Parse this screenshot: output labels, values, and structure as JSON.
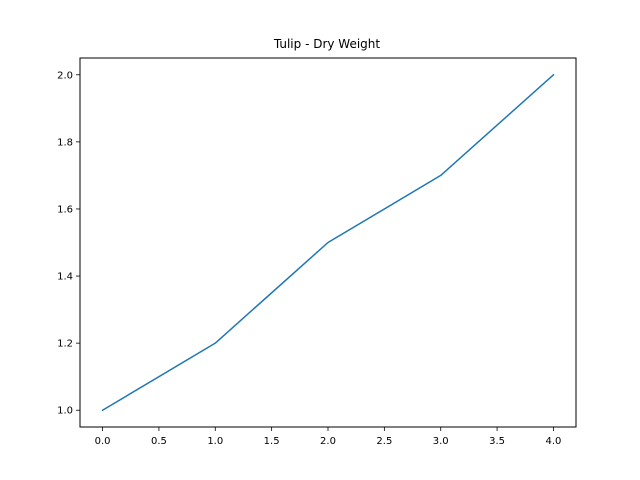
{
  "chart_data": {
    "type": "line",
    "title": "Tulip - Dry Weight",
    "xlabel": "",
    "ylabel": "",
    "xlim": [
      -0.2,
      4.2
    ],
    "ylim": [
      0.95,
      2.05
    ],
    "x_ticks": [
      0.0,
      0.5,
      1.0,
      1.5,
      2.0,
      2.5,
      3.0,
      3.5,
      4.0
    ],
    "y_ticks": [
      1.0,
      1.2,
      1.4,
      1.6,
      1.8,
      2.0
    ],
    "x_tick_labels": [
      "0.0",
      "0.5",
      "1.0",
      "1.5",
      "2.0",
      "2.5",
      "3.0",
      "3.5",
      "4.0"
    ],
    "y_tick_labels": [
      "1.0",
      "1.2",
      "1.4",
      "1.6",
      "1.8",
      "2.0"
    ],
    "grid": false,
    "series": [
      {
        "color": "#1f77b4",
        "x": [
          0,
          1,
          2,
          3,
          4
        ],
        "y": [
          1.0,
          1.2,
          1.5,
          1.7,
          2.0
        ]
      }
    ]
  }
}
